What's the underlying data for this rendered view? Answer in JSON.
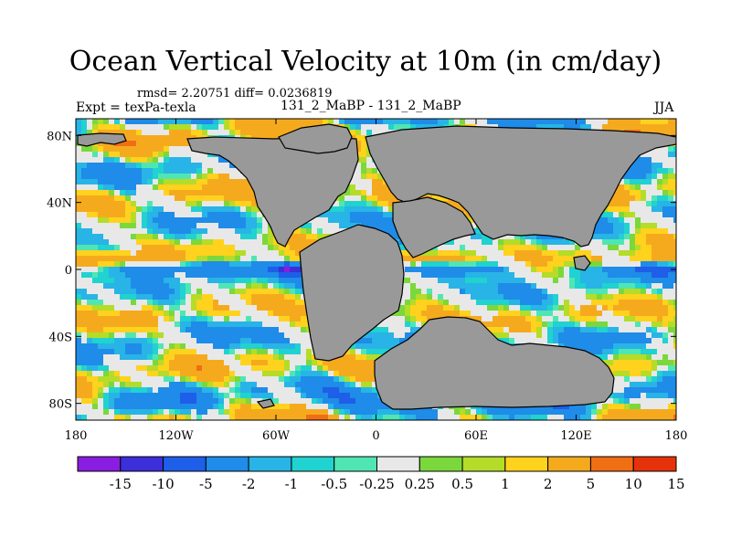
{
  "chart_data": {
    "type": "heatmap",
    "title": "Ocean Vertical Velocity at 10m (in cm/day)",
    "stats_text": "rmsd= 2.20751 diff= 0.0236819",
    "left_label": "Expt = texPa-texla",
    "center_label": "131_2_MaBP - 131_2_MaBP",
    "right_label": "JJA",
    "x_ticks": [
      "180",
      "120W",
      "60W",
      "0",
      "60E",
      "120E",
      "180"
    ],
    "x_tick_values": [
      -180,
      -120,
      -60,
      0,
      60,
      120,
      180
    ],
    "y_ticks": [
      "80N",
      "40N",
      "0",
      "40S",
      "80S"
    ],
    "y_tick_values": [
      80,
      40,
      0,
      -40,
      -80
    ],
    "xlim": [
      -180,
      180
    ],
    "ylim": [
      -90,
      90
    ],
    "colorbar": {
      "levels": [
        "-15",
        "-10",
        "-5",
        "-2",
        "-1",
        "-0.5",
        "-0.25",
        "0.25",
        "0.5",
        "1",
        "2",
        "5",
        "10",
        "15"
      ],
      "colors": [
        "#8a1ee0",
        "#3c2ed8",
        "#1e5ee8",
        "#1e8ce8",
        "#28b4e6",
        "#20d2d0",
        "#50e6b4",
        "#e8e8e8",
        "#7ad83c",
        "#b4dc28",
        "#ffd21e",
        "#f5aa1e",
        "#f06e14",
        "#e6320a"
      ]
    },
    "land_color": "#999999",
    "land_outline_color": "#000000"
  }
}
